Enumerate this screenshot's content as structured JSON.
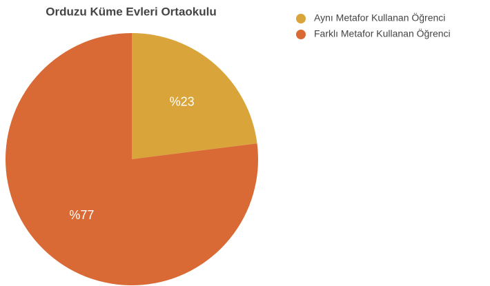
{
  "chart_data": {
    "type": "pie",
    "title": "Orduzu Küme Evleri Ortaokulu",
    "categories": [
      "Aynı Metafor Kullanan Öğrenci",
      "Farklı Metafor Kullanan Öğrenci"
    ],
    "values": [
      23,
      77
    ],
    "value_labels": [
      "%23",
      "%77"
    ],
    "colors": [
      "#d9a43a",
      "#d96a35"
    ],
    "legend": "top-right"
  }
}
